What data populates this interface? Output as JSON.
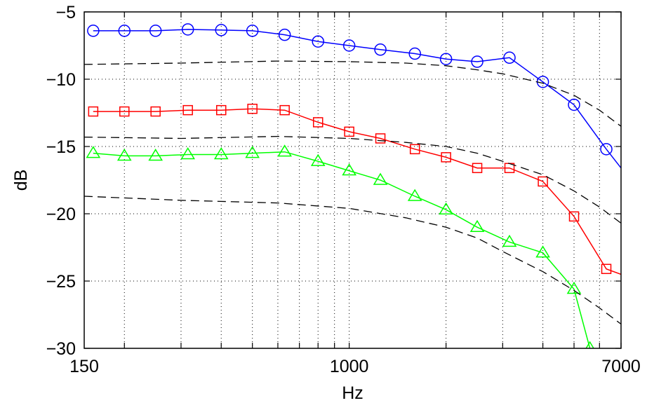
{
  "chart_data": {
    "type": "line",
    "xlabel": "Hz",
    "ylabel": "dB",
    "x_scale": "log",
    "xlim": [
      150,
      7000
    ],
    "ylim": [
      -30,
      -5
    ],
    "x_tick_labels": [
      "150",
      "1000",
      "7000"
    ],
    "y_ticks": [
      -5,
      -10,
      -15,
      -20,
      -25,
      -30
    ],
    "y_tick_labels": [
      "−5",
      "−10",
      "−15",
      "−20",
      "−25",
      "−30"
    ],
    "grid": true,
    "series": [
      {
        "marker": "circle",
        "color": "#0000ff",
        "line_style": "solid",
        "x": [
          160,
          200,
          250,
          315,
          400,
          500,
          630,
          800,
          1000,
          1250,
          1600,
          2000,
          2500,
          3150,
          4000,
          5000,
          6300,
          7000
        ],
        "y": [
          -6.4,
          -6.4,
          -6.4,
          -6.3,
          -6.35,
          -6.4,
          -6.7,
          -7.2,
          -7.5,
          -7.8,
          -8.1,
          -8.5,
          -8.7,
          -8.4,
          -10.2,
          -11.9,
          -15.2,
          -16.6
        ]
      },
      {
        "marker": "square",
        "color": "#ff0000",
        "line_style": "solid",
        "x": [
          160,
          200,
          250,
          315,
          400,
          500,
          630,
          800,
          1000,
          1250,
          1600,
          2000,
          2500,
          3150,
          4000,
          5000,
          6300,
          7000
        ],
        "y": [
          -12.4,
          -12.4,
          -12.4,
          -12.3,
          -12.3,
          -12.2,
          -12.3,
          -13.2,
          -13.9,
          -14.4,
          -15.2,
          -15.8,
          -16.6,
          -16.6,
          -17.6,
          -20.2,
          -24.1,
          -24.5
        ]
      },
      {
        "marker": "triangle",
        "color": "#00ff00",
        "line_style": "solid",
        "x": [
          160,
          200,
          250,
          315,
          400,
          500,
          630,
          800,
          1000,
          1250,
          1600,
          2000,
          2500,
          3150,
          4000,
          5000,
          5600
        ],
        "y": [
          -15.5,
          -15.7,
          -15.7,
          -15.6,
          -15.6,
          -15.5,
          -15.4,
          -16.1,
          -16.8,
          -17.5,
          -18.7,
          -19.7,
          -21.0,
          -22.1,
          -22.9,
          -25.6,
          -30.0
        ]
      },
      {
        "marker": "none",
        "color": "#000000",
        "line_style": "dashed",
        "x": [
          150,
          300,
          600,
          1000,
          1500,
          2000,
          2500,
          3000,
          4000,
          5000,
          6000,
          7000
        ],
        "y": [
          -8.9,
          -8.8,
          -8.65,
          -8.7,
          -8.8,
          -9.0,
          -9.3,
          -9.6,
          -10.3,
          -11.2,
          -12.3,
          -13.5
        ]
      },
      {
        "marker": "none",
        "color": "#000000",
        "line_style": "dashed",
        "x": [
          150,
          300,
          600,
          1000,
          1500,
          2000,
          2500,
          3000,
          4000,
          5000,
          6000,
          7000
        ],
        "y": [
          -14.3,
          -14.4,
          -14.25,
          -14.4,
          -14.7,
          -15.0,
          -15.5,
          -16.1,
          -17.1,
          -18.3,
          -19.5,
          -20.7
        ]
      },
      {
        "marker": "none",
        "color": "#000000",
        "line_style": "dashed",
        "x": [
          150,
          300,
          600,
          1000,
          1500,
          2000,
          2500,
          3000,
          4000,
          5000,
          6000,
          7000
        ],
        "y": [
          -18.7,
          -19.0,
          -19.2,
          -19.6,
          -20.3,
          -21.0,
          -21.8,
          -22.8,
          -24.3,
          -25.7,
          -27.0,
          -28.2
        ]
      }
    ]
  }
}
